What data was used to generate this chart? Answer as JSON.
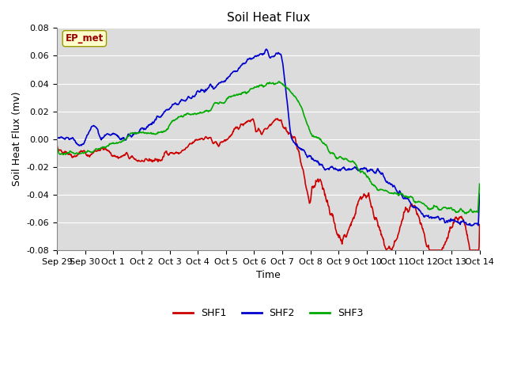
{
  "title": "Soil Heat Flux",
  "ylabel": "Soil Heat Flux (mv)",
  "xlabel": "Time",
  "ylim": [
    -0.08,
    0.08
  ],
  "yticks": [
    -0.08,
    -0.06,
    -0.04,
    -0.02,
    0.0,
    0.02,
    0.04,
    0.06,
    0.08
  ],
  "xtick_labels": [
    "Sep 29",
    "Sep 30",
    "Oct 1",
    "Oct 2",
    "Oct 3",
    "Oct 4",
    "Oct 5",
    "Oct 6",
    "Oct 7",
    "Oct 8",
    "Oct 9",
    "Oct 10",
    "Oct 11",
    "Oct 12",
    "Oct 13",
    "Oct 14"
  ],
  "shf1_color": "#cc0000",
  "shf2_color": "#0000cc",
  "shf3_color": "#00aa00",
  "plot_bg_color": "#dcdcdc",
  "fig_bg_color": "#ffffff",
  "annotation_text": "EP_met",
  "annotation_color": "#990000",
  "annotation_bg": "#ffffcc",
  "annotation_edge": "#999900",
  "legend_labels": [
    "SHF1",
    "SHF2",
    "SHF3"
  ],
  "linewidth": 1.2,
  "title_fontsize": 11,
  "axis_fontsize": 9,
  "tick_fontsize": 8
}
